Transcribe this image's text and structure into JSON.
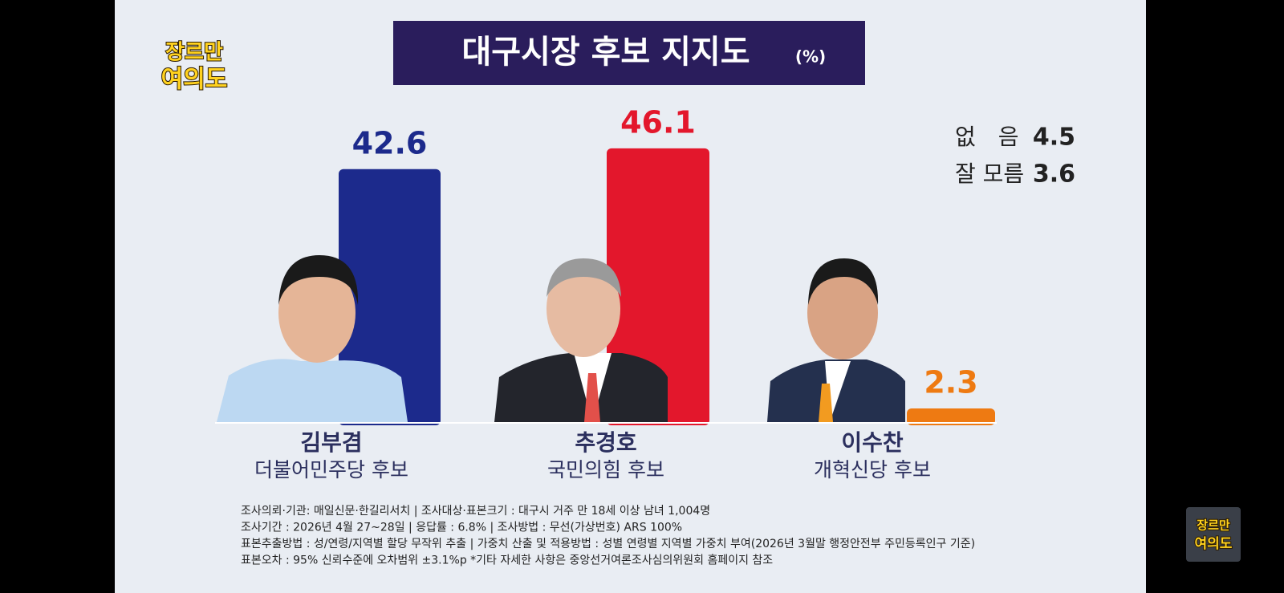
{
  "chart_data": {
    "type": "bar",
    "title": "대구시장 후보 지지도",
    "unit": "(%)",
    "categories": [
      "김부겸",
      "추경호",
      "이수찬"
    ],
    "parties": [
      "더불어민주당 후보",
      "국민의힘 후보",
      "개혁신당 후보"
    ],
    "values": [
      42.6,
      46.1,
      2.3
    ],
    "colors": [
      "#1c2a8c",
      "#e3172c",
      "#ee7a12"
    ],
    "others": [
      {
        "label": "없　음",
        "value": 4.5
      },
      {
        "label": "잘 모름",
        "value": 3.6
      }
    ],
    "notes": [
      "조사의뢰·기관: 매일신문·한길리서치 | 조사대상·표본크기 : 대구시 거주 만 18세 이상 남녀 1,004명",
      "조사기간 : 2026년 4월 27~28일 | 응답률 : 6.8% | 조사방법 : 무선(가상번호) ARS 100%",
      "표본추출방법 : 성/연령/지역별 할당 무작위 추출 | 가중치 산출 및 적용방법 : 성별 연령별 지역별 가중치 부여(2026년 3월말 행정안전부 주민등록인구 기준)",
      "표본오차 : 95% 신뢰수준에 오차범위 ±3.1%p *기타 자세한 사항은 중앙선거여론조사심의위원회 홈페이지 참조"
    ]
  },
  "logo": [
    "장르만",
    "여의도"
  ]
}
